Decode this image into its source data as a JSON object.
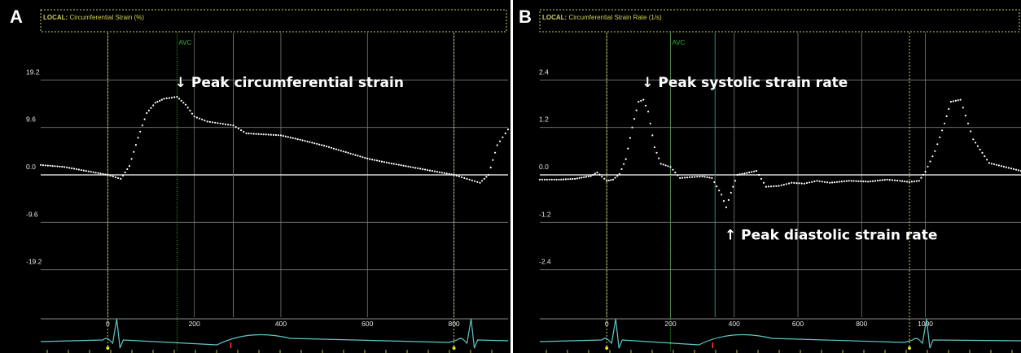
{
  "panels": {
    "A": {
      "letter": "A",
      "title": "Circumferential Strain (%)"
    },
    "B": {
      "letter": "B",
      "title": "Circumferential Strain Rate (1/s)"
    }
  },
  "common": {
    "local_label": "LOCAL:",
    "avc_label": "AVC"
  },
  "colors": {
    "background": "#000000",
    "frame": "#cfcf5a",
    "grid": "#7a7a7a",
    "curve": "#ffffff",
    "avc_line": "#2db02d",
    "teal_line": "#2a8e8e",
    "yellow_dotted": "#cfcf5a",
    "ecg": "#5ec6c6",
    "tick_text": "#e6e6e6"
  },
  "chart_data": [
    {
      "type": "line",
      "panel": "A",
      "title": "Circumferential Strain (%)",
      "ylim": [
        -28.8,
        28.8
      ],
      "yticks": [
        19.2,
        9.6,
        0.0,
        -9.6,
        -19.2
      ],
      "ytick_labels": [
        "19.2",
        "9.6",
        "0.0",
        "-9.6",
        "-19.2"
      ],
      "xlim": [
        -155,
        925
      ],
      "xticks": [
        0,
        200,
        400,
        600,
        800
      ],
      "xtick_labels": [
        "0",
        "200",
        "400",
        "600",
        "800"
      ],
      "vlines": {
        "avc": 160,
        "teal": 290,
        "yellow_dotted": [
          0,
          800
        ]
      },
      "annotation": {
        "text": "↓ Peak circumferential strain",
        "x": 155,
        "y": 16.8
      },
      "series": [
        {
          "x": [
            -155,
            -100,
            -50,
            0,
            30,
            50,
            70,
            90,
            110,
            130,
            160,
            180,
            200,
            230,
            260,
            290,
            320,
            360,
            400,
            450,
            500,
            550,
            600,
            650,
            700,
            750,
            800,
            830,
            860,
            880,
            900,
            925
          ],
          "y": [
            2.0,
            1.6,
            0.8,
            0.0,
            -0.8,
            1.8,
            7.5,
            12.5,
            14.6,
            15.4,
            15.8,
            14.2,
            11.8,
            10.8,
            10.4,
            10.0,
            8.4,
            8.2,
            8.0,
            7.0,
            5.9,
            4.6,
            3.3,
            2.4,
            1.6,
            0.8,
            0.0,
            -0.8,
            -1.6,
            0.0,
            6.0,
            9.2
          ]
        }
      ]
    },
    {
      "type": "line",
      "panel": "B",
      "title": "Circumferential Strain Rate (1/s)",
      "ylim": [
        -3.6,
        3.6
      ],
      "yticks": [
        2.4,
        1.2,
        0.0,
        -1.2,
        -2.4
      ],
      "ytick_labels": [
        "2.4",
        "1.2",
        "0.0",
        "-1.2",
        "-2.4"
      ],
      "xlim": [
        -210,
        1300
      ],
      "xticks": [
        0,
        200,
        400,
        600,
        800,
        1000
      ],
      "xtick_labels": [
        "0",
        "200",
        "400",
        "600",
        "800",
        "1000"
      ],
      "vlines": {
        "avc": 200,
        "teal": 340,
        "yellow_dotted": [
          0,
          950
        ]
      },
      "annotations": [
        {
          "text": "↓ Peak systolic strain rate",
          "x": 110,
          "y": 2.1
        },
        {
          "text": "↑ Peak diastolic strain rate",
          "x": 370,
          "y": -1.1
        }
      ],
      "series": [
        {
          "x": [
            -210,
            -150,
            -100,
            -50,
            -30,
            0,
            20,
            40,
            60,
            80,
            100,
            115,
            130,
            150,
            170,
            200,
            230,
            260,
            300,
            330,
            360,
            375,
            390,
            410,
            440,
            470,
            500,
            540,
            580,
            620,
            660,
            700,
            760,
            820,
            880,
            920,
            950,
            980,
            1000,
            1030,
            1060,
            1080,
            1110,
            1150,
            1200,
            1300
          ],
          "y": [
            -0.12,
            -0.12,
            -0.1,
            -0.03,
            0.06,
            -0.15,
            -0.12,
            0.02,
            0.4,
            1.2,
            1.85,
            1.9,
            1.6,
            0.7,
            0.28,
            0.2,
            -0.08,
            -0.06,
            -0.04,
            -0.08,
            -0.5,
            -0.82,
            -0.45,
            0.0,
            0.05,
            0.1,
            -0.3,
            -0.28,
            -0.2,
            -0.22,
            -0.15,
            -0.2,
            -0.15,
            -0.17,
            -0.12,
            -0.15,
            -0.18,
            -0.15,
            0.08,
            0.6,
            1.3,
            1.85,
            1.9,
            0.9,
            0.3,
            0.1
          ]
        }
      ]
    }
  ]
}
